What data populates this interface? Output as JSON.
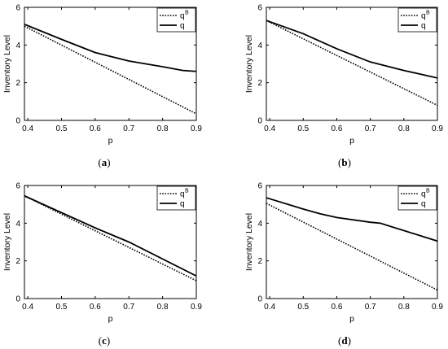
{
  "chart_data": [
    {
      "type": "line",
      "caption_open": "(",
      "caption_letter": "a",
      "caption_close": ")",
      "xlabel": "p",
      "ylabel": "Inventory Level",
      "xlim": [
        0.39,
        0.9
      ],
      "ylim": [
        0,
        6
      ],
      "xticks": [
        "0.4",
        "0.5",
        "0.6",
        "0.7",
        "0.8",
        "0.9"
      ],
      "yticks": [
        "0",
        "2",
        "4",
        "6"
      ],
      "legend_position": "top-right",
      "series": [
        {
          "name": "q",
          "superscript": "B",
          "style": "dotted",
          "x": [
            0.39,
            0.9
          ],
          "y": [
            5.0,
            0.35
          ]
        },
        {
          "name": "q",
          "superscript": "",
          "style": "solid",
          "x": [
            0.39,
            0.5,
            0.6,
            0.7,
            0.8,
            0.86,
            0.9
          ],
          "y": [
            5.1,
            4.3,
            3.6,
            3.15,
            2.85,
            2.65,
            2.6
          ]
        }
      ]
    },
    {
      "type": "line",
      "caption_open": "(",
      "caption_letter": "b",
      "caption_close": ")",
      "xlabel": "p",
      "ylabel": "Inventory Level",
      "xlim": [
        0.39,
        0.9
      ],
      "ylim": [
        0,
        6
      ],
      "xticks": [
        "0.4",
        "0.5",
        "0.6",
        "0.7",
        "0.8",
        "0.9"
      ],
      "yticks": [
        "0",
        "2",
        "4",
        "6"
      ],
      "legend_position": "top-right",
      "series": [
        {
          "name": "q",
          "superscript": "B",
          "style": "dotted",
          "x": [
            0.39,
            0.9
          ],
          "y": [
            5.3,
            0.8
          ]
        },
        {
          "name": "q",
          "superscript": "",
          "style": "solid",
          "x": [
            0.39,
            0.5,
            0.6,
            0.7,
            0.8,
            0.9
          ],
          "y": [
            5.3,
            4.6,
            3.8,
            3.1,
            2.65,
            2.25
          ]
        }
      ]
    },
    {
      "type": "line",
      "caption_open": "(",
      "caption_letter": "c",
      "caption_close": ")",
      "xlabel": "p",
      "ylabel": "Inventory Level",
      "xlim": [
        0.39,
        0.9
      ],
      "ylim": [
        0,
        6
      ],
      "xticks": [
        "0.4",
        "0.5",
        "0.6",
        "0.7",
        "0.8",
        "0.9"
      ],
      "yticks": [
        "0",
        "2",
        "4",
        "6"
      ],
      "legend_position": "top-right",
      "series": [
        {
          "name": "q",
          "superscript": "B",
          "style": "dotted",
          "x": [
            0.39,
            0.9
          ],
          "y": [
            5.45,
            0.95
          ]
        },
        {
          "name": "q",
          "superscript": "",
          "style": "solid",
          "x": [
            0.39,
            0.6,
            0.7,
            0.9
          ],
          "y": [
            5.45,
            3.75,
            3.0,
            1.2
          ]
        }
      ]
    },
    {
      "type": "line",
      "caption_open": "(",
      "caption_letter": "d",
      "caption_close": ")",
      "xlabel": "p",
      "ylabel": "Inventory Level",
      "xlim": [
        0.39,
        0.9
      ],
      "ylim": [
        0,
        6
      ],
      "xticks": [
        "0.4",
        "0.5",
        "0.6",
        "0.7",
        "0.8",
        "0.9"
      ],
      "yticks": [
        "0",
        "2",
        "4",
        "6"
      ],
      "legend_position": "top-right",
      "series": [
        {
          "name": "q",
          "superscript": "B",
          "style": "dotted",
          "x": [
            0.39,
            0.9
          ],
          "y": [
            5.05,
            0.45
          ]
        },
        {
          "name": "q",
          "superscript": "",
          "style": "solid",
          "x": [
            0.39,
            0.5,
            0.55,
            0.6,
            0.7,
            0.73,
            0.9
          ],
          "y": [
            5.35,
            4.75,
            4.5,
            4.3,
            4.05,
            4.0,
            3.05
          ]
        }
      ]
    }
  ]
}
